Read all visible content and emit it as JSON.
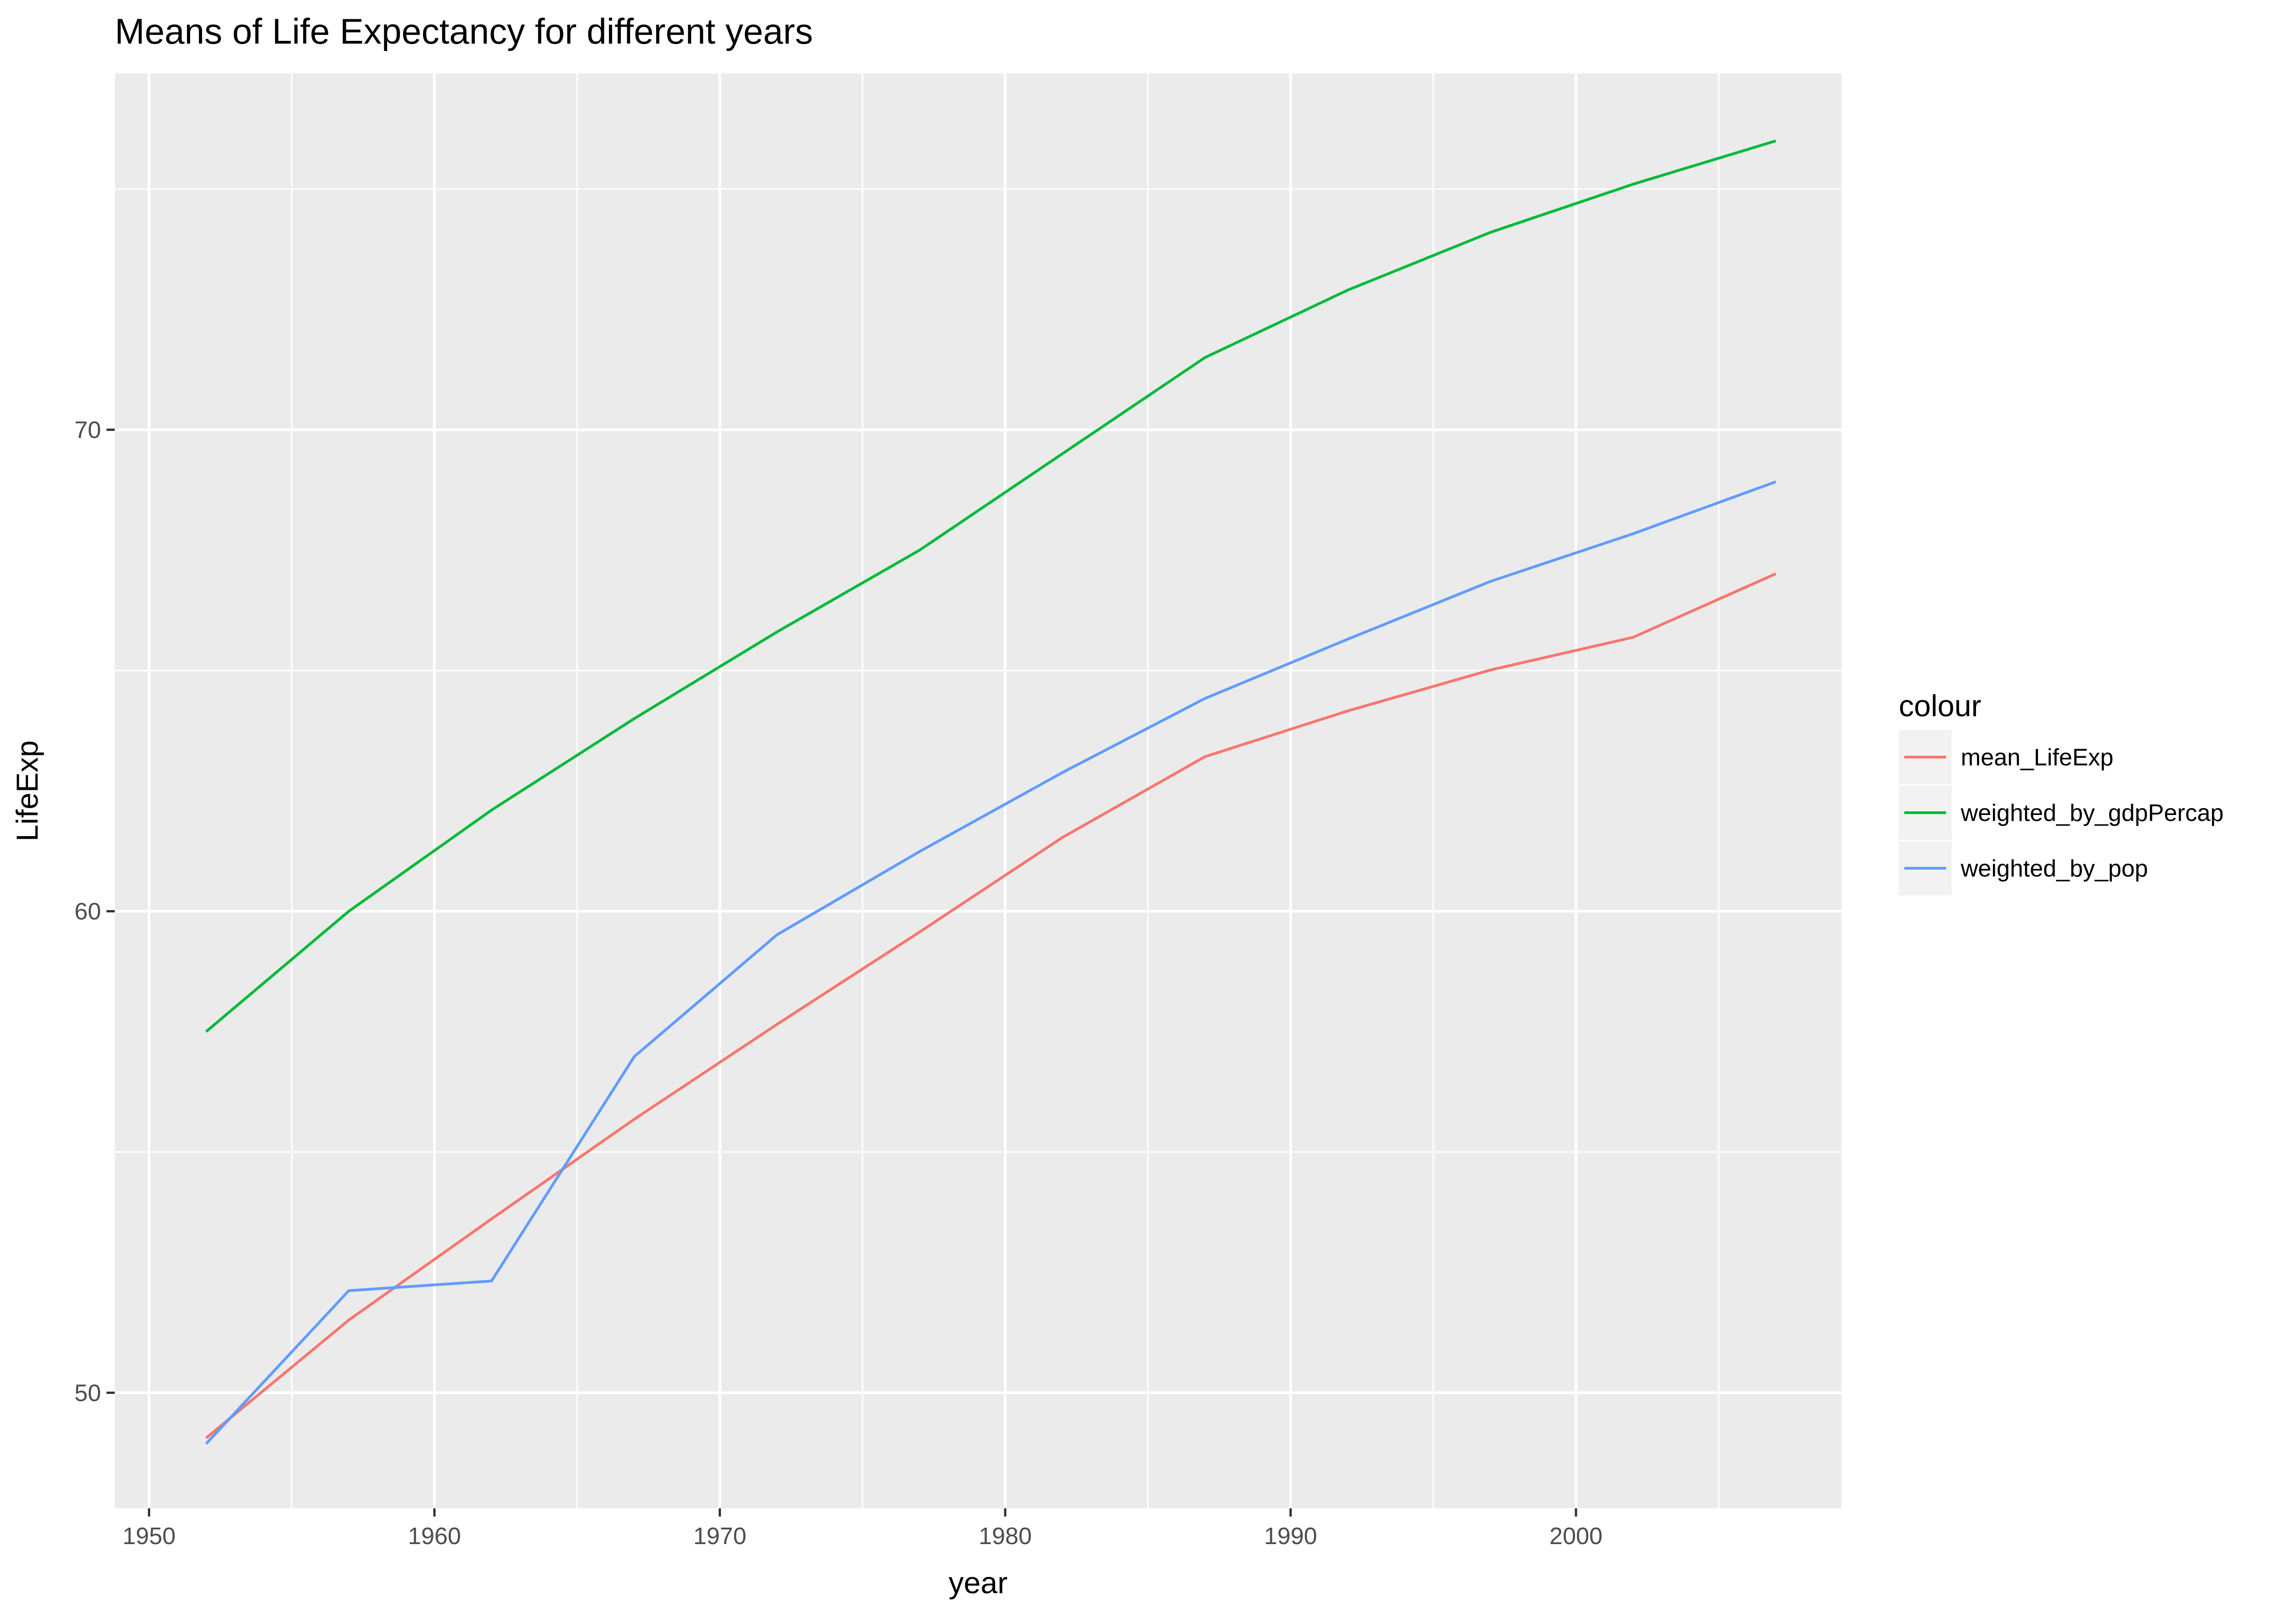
{
  "chart_data": {
    "type": "line",
    "title": "Means of Life Expectancy for different years",
    "xlabel": "year",
    "ylabel": "LifeExp",
    "xlim": [
      1948.8,
      2009.3
    ],
    "ylim": [
      47.6,
      77.4
    ],
    "x_ticks": [
      1950,
      1960,
      1970,
      1980,
      1990,
      2000
    ],
    "x_tick_labels": [
      "1950",
      "1960",
      "1970",
      "1980",
      "1990",
      "2000"
    ],
    "x_minor_ticks": [
      1955,
      1965,
      1975,
      1985,
      1995,
      2005
    ],
    "y_ticks": [
      50,
      60,
      70
    ],
    "y_tick_labels": [
      "50",
      "60",
      "70"
    ],
    "y_minor_ticks": [
      55,
      65,
      75
    ],
    "grid": true,
    "x": [
      1952,
      1957,
      1962,
      1967,
      1972,
      1977,
      1982,
      1987,
      1992,
      1997,
      2002,
      2007
    ],
    "series": [
      {
        "name": "mean_LifeExp",
        "color": "#F8766D",
        "values": [
          49.06,
          51.51,
          53.61,
          55.68,
          57.65,
          59.57,
          61.53,
          63.21,
          64.16,
          65.01,
          65.69,
          67.01
        ]
      },
      {
        "name": "weighted_by_gdpPercap",
        "color": "#00BA38",
        "values": [
          57.5,
          60.0,
          62.1,
          64.0,
          65.8,
          67.5,
          69.5,
          71.5,
          72.9,
          74.1,
          75.1,
          76.0
        ]
      },
      {
        "name": "weighted_by_pop",
        "color": "#619CFF",
        "values": [
          48.94,
          52.12,
          52.32,
          56.98,
          59.51,
          61.24,
          62.88,
          64.42,
          65.65,
          66.85,
          67.84,
          68.92
        ]
      }
    ],
    "legend": {
      "title": "colour",
      "position": "right"
    },
    "colors": {
      "panel_background": "#EBEBEB",
      "grid_line": "#FFFFFF",
      "text": "#000000",
      "axis_text": "#4D4D4D",
      "tick": "#333333"
    }
  }
}
